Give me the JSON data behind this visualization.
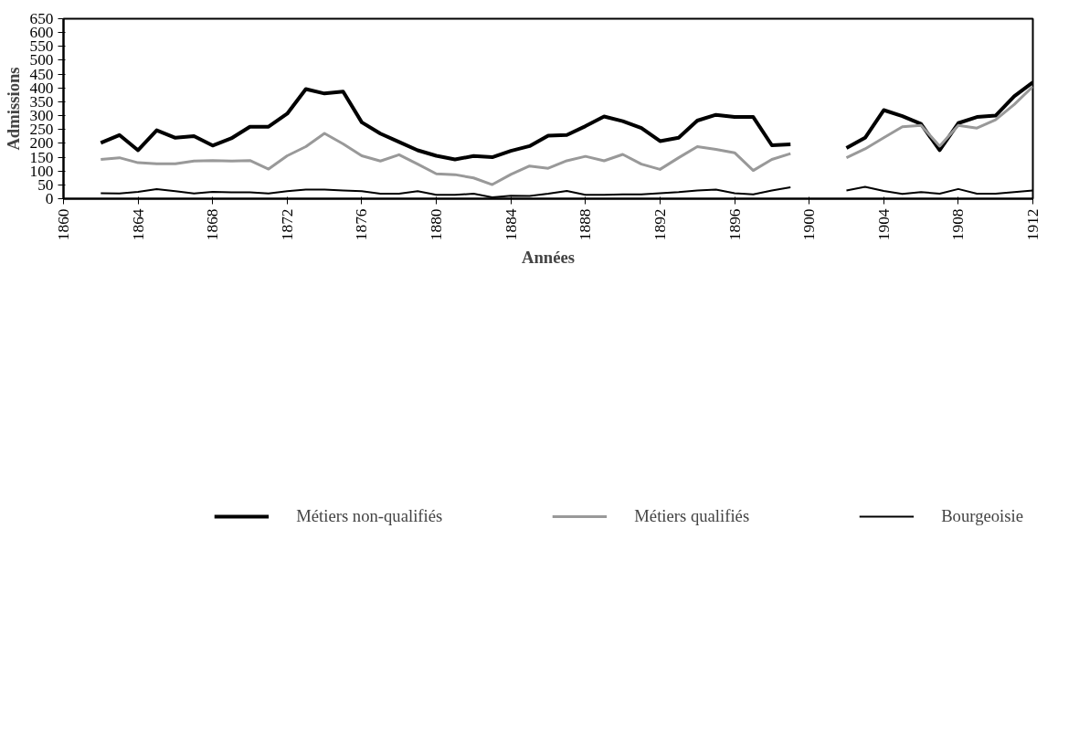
{
  "chart_data": {
    "type": "line",
    "xlabel": "Années",
    "ylabel": "Admissions",
    "x": [
      1862,
      1863,
      1864,
      1865,
      1866,
      1867,
      1868,
      1869,
      1870,
      1871,
      1872,
      1873,
      1874,
      1875,
      1876,
      1877,
      1878,
      1879,
      1880,
      1881,
      1882,
      1883,
      1884,
      1885,
      1886,
      1887,
      1888,
      1889,
      1890,
      1891,
      1892,
      1893,
      1894,
      1895,
      1896,
      1897,
      1898,
      1899,
      1900,
      1901,
      1902,
      1903,
      1904,
      1905,
      1906,
      1907,
      1908,
      1909,
      1910,
      1911,
      1912
    ],
    "series": [
      {
        "name": "Métiers non-qualifiés",
        "color": "#000000",
        "values": [
          202,
          230,
          175,
          247,
          220,
          226,
          192,
          218,
          260,
          260,
          307,
          396,
          380,
          387,
          276,
          235,
          205,
          175,
          155,
          142,
          154,
          150,
          173,
          190,
          228,
          230,
          262,
          297,
          280,
          255,
          208,
          220,
          282,
          303,
          295,
          295,
          193,
          196,
          null,
          null,
          183,
          220,
          320,
          298,
          270,
          175,
          273,
          295,
          300,
          370,
          420
        ]
      },
      {
        "name": "Métiers qualifiés",
        "color": "#999999",
        "values": [
          142,
          148,
          130,
          126,
          126,
          136,
          138,
          136,
          138,
          107,
          155,
          188,
          236,
          198,
          155,
          136,
          159,
          125,
          90,
          87,
          75,
          51,
          88,
          118,
          110,
          137,
          153,
          137,
          160,
          125,
          106,
          148,
          188,
          178,
          166,
          102,
          142,
          163,
          null,
          null,
          148,
          180,
          220,
          260,
          265,
          190,
          265,
          255,
          285,
          340,
          405
        ]
      },
      {
        "name": "Bourgeoisie",
        "color": "#000000",
        "values": [
          20,
          19,
          25,
          35,
          27,
          19,
          25,
          23,
          23,
          19,
          27,
          33,
          33,
          30,
          27,
          18,
          18,
          27,
          14,
          14,
          18,
          5,
          11,
          10,
          18,
          28,
          14,
          14,
          16,
          16,
          20,
          24,
          30,
          33,
          20,
          16,
          30,
          41,
          null,
          null,
          30,
          43,
          28,
          17,
          24,
          18,
          35,
          18,
          18,
          24,
          30
        ]
      }
    ],
    "xlim": [
      1860,
      1912
    ],
    "xticks": [
      1860,
      1864,
      1868,
      1872,
      1876,
      1880,
      1884,
      1888,
      1892,
      1896,
      1900,
      1904,
      1908,
      1912
    ],
    "ylim": [
      0,
      650
    ],
    "yticks": [
      0,
      50,
      100,
      150,
      200,
      250,
      300,
      350,
      400,
      450,
      500,
      550,
      600,
      650
    ],
    "grid": false,
    "legend": "bottom",
    "marker": "none",
    "line_style": "solid"
  }
}
